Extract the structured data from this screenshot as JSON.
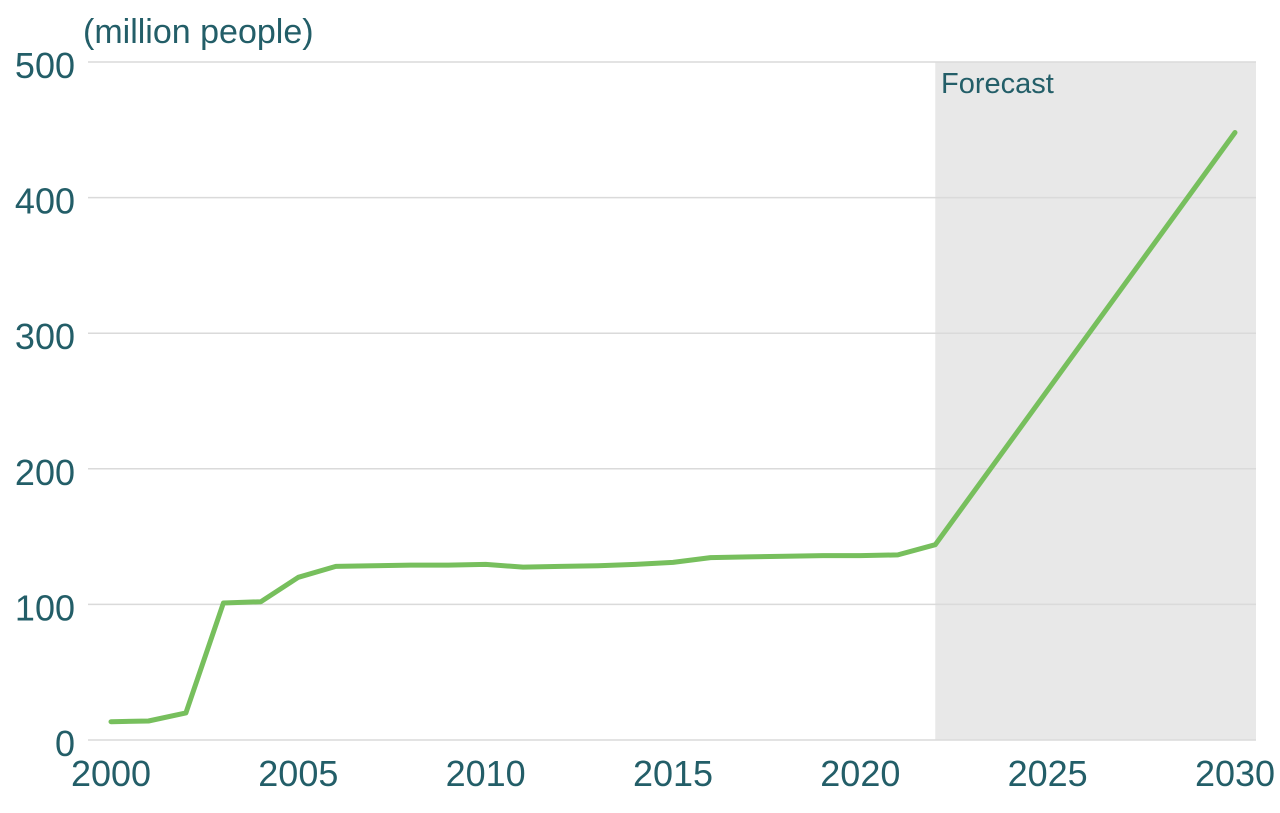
{
  "chart_title": "(million people)",
  "forecast_label": "Forecast",
  "chart_data": {
    "type": "line",
    "title": "(million people)",
    "xlabel": "",
    "ylabel": "million people",
    "xlim": [
      2000,
      2030
    ],
    "ylim": [
      0,
      500
    ],
    "xticks": [
      2000,
      2005,
      2010,
      2015,
      2020,
      2025,
      2030
    ],
    "yticks": [
      0,
      100,
      200,
      300,
      400,
      500
    ],
    "grid": "horizontal",
    "legend": "none",
    "forecast": {
      "label": "Forecast",
      "from_x": 2022,
      "shaded": true
    },
    "series": [
      {
        "name": "million people",
        "x": [
          2000,
          2001,
          2002,
          2003,
          2004,
          2005,
          2006,
          2007,
          2008,
          2009,
          2010,
          2011,
          2012,
          2013,
          2014,
          2015,
          2016,
          2017,
          2018,
          2019,
          2020,
          2021,
          2022,
          2030
        ],
        "values": [
          13.5,
          14,
          20,
          101,
          102,
          120,
          128,
          128.5,
          129,
          129,
          129.5,
          127.5,
          128,
          128.5,
          129.5,
          131,
          134.5,
          135,
          135.5,
          136,
          136,
          136.5,
          144,
          448
        ]
      }
    ],
    "colors": {
      "line": "#77bf5d",
      "text": "#235e68",
      "grid": "#dadada",
      "forecast_background": "#e8e8e8",
      "background": "#ffffff"
    }
  }
}
